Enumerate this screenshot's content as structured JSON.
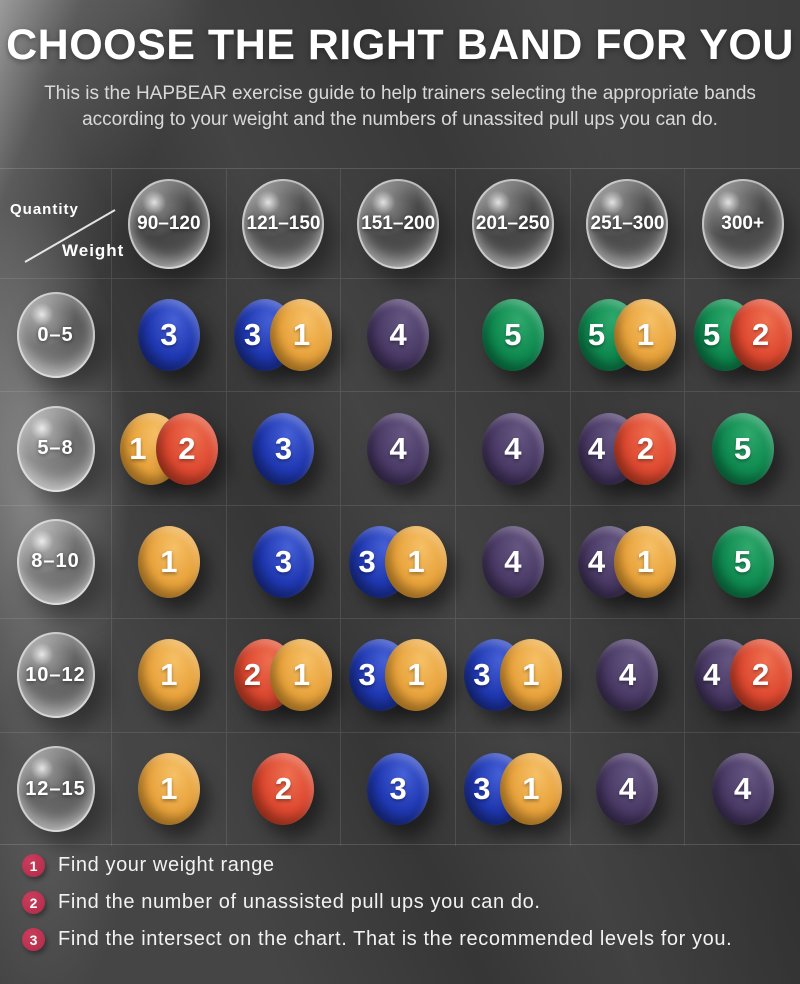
{
  "page": {
    "title": "CHOOSE THE RIGHT BAND FOR YOU",
    "subtitle": "This is the HAPBEAR exercise guide to help trainers selecting the appropriate bands according to your weight and the numbers of unassited pull ups you can do."
  },
  "chart_data": {
    "type": "table",
    "title": "CHOOSE THE RIGHT BAND FOR YOU",
    "col_axis_label": "Weight",
    "row_axis_label": "Quantity",
    "columns": [
      "90–120",
      "121–150",
      "151–200",
      "201–250",
      "251–300",
      "300+"
    ],
    "rows": [
      "0–5",
      "5–8",
      "8–10",
      "10–12",
      "12–15"
    ],
    "cells": [
      [
        [
          "3"
        ],
        [
          "3",
          "1"
        ],
        [
          "4"
        ],
        [
          "5"
        ],
        [
          "5",
          "1"
        ],
        [
          "5",
          "2"
        ]
      ],
      [
        [
          "1",
          "2"
        ],
        [
          "3"
        ],
        [
          "4"
        ],
        [
          "4"
        ],
        [
          "4",
          "2"
        ],
        [
          "5"
        ]
      ],
      [
        [
          "1"
        ],
        [
          "3"
        ],
        [
          "3",
          "1"
        ],
        [
          "4"
        ],
        [
          "4",
          "1"
        ],
        [
          "5"
        ]
      ],
      [
        [
          "1"
        ],
        [
          "2",
          "1"
        ],
        [
          "3",
          "1"
        ],
        [
          "3",
          "1"
        ],
        [
          "4"
        ],
        [
          "4",
          "2"
        ]
      ],
      [
        [
          "1"
        ],
        [
          "2"
        ],
        [
          "3"
        ],
        [
          "3",
          "1"
        ],
        [
          "4"
        ],
        [
          "4"
        ]
      ]
    ]
  },
  "band_colors": {
    "1": {
      "base": "#e8a23b",
      "light": "#f6c066",
      "dark": "#b97c1c"
    },
    "2": {
      "base": "#dd4830",
      "light": "#ee6f50",
      "dark": "#a52f17"
    },
    "3": {
      "base": "#1f38b2",
      "light": "#4660d6",
      "dark": "#13236e"
    },
    "4": {
      "base": "#4a3a66",
      "light": "#655581",
      "dark": "#2d2240"
    },
    "5": {
      "base": "#0f8a50",
      "light": "#2fa96c",
      "dark": "#06613a"
    }
  },
  "instructions": {
    "badge_color": "#b22a48",
    "items": [
      {
        "num": "1",
        "text": "Find your weight range"
      },
      {
        "num": "2",
        "text": "Find the number of unassisted pull ups you can do."
      },
      {
        "num": "3",
        "text": "Find the intersect on the chart. That is the recommended levels for you."
      }
    ]
  }
}
